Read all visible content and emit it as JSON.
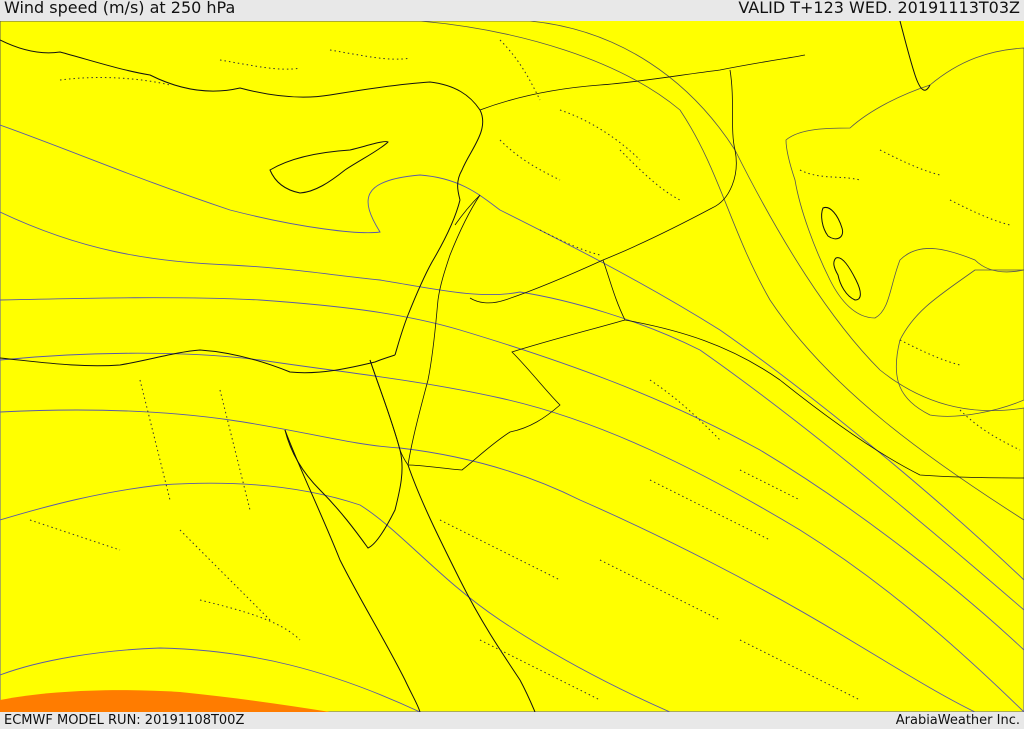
{
  "header": {
    "title": "Wind speed (m/s) at 250 hPa",
    "valid": "VALID T+123 WED. 20191113T03Z"
  },
  "footer": {
    "model_run": "ECMWF MODEL RUN: 20191108T00Z",
    "credit": "ArabiaWeather Inc."
  },
  "map": {
    "variable": "wind speed",
    "level": "250 hPa",
    "colors": {
      "band_light": "#ffe0a8",
      "band_1": "#ffff00",
      "band_2": "#ffe000",
      "band_3": "#ffc200",
      "band_4": "#ffa000",
      "band_5": "#ff7c00",
      "band_6": "#ff5a00",
      "band_7": "#ff4000",
      "band_8": "#ff2600",
      "lake": "#d8e4f0"
    }
  }
}
